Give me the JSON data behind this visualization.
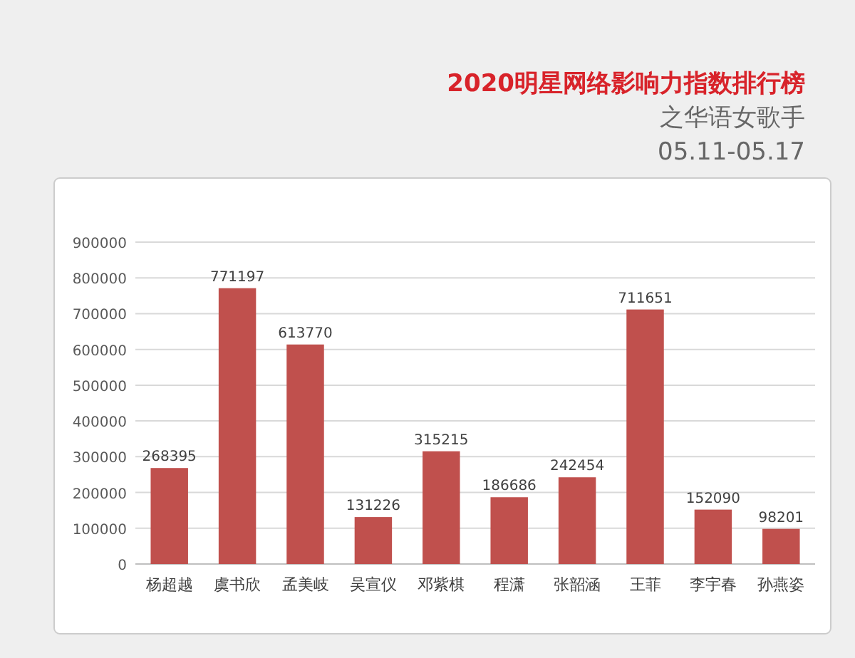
{
  "chart_data": {
    "type": "bar",
    "title": "2020明星网络影响力指数排行榜",
    "subtitle": "之华语女歌手",
    "annotations": [
      "05.11-05.17"
    ],
    "categories": [
      "杨超越",
      "虞书欣",
      "孟美岐",
      "吴宣仪",
      "邓紫棋",
      "程潇",
      "张韶涵",
      "王菲",
      "李宇春",
      "孙燕姿"
    ],
    "values": [
      268395,
      771197,
      613770,
      131226,
      315215,
      186686,
      242454,
      711651,
      152090,
      98201
    ],
    "color": "#c0504d",
    "ylim": [
      0,
      900000
    ],
    "yticks": [
      0,
      100000,
      200000,
      300000,
      400000,
      500000,
      600000,
      700000,
      800000,
      900000
    ],
    "grid": "y",
    "data_labels": true
  }
}
